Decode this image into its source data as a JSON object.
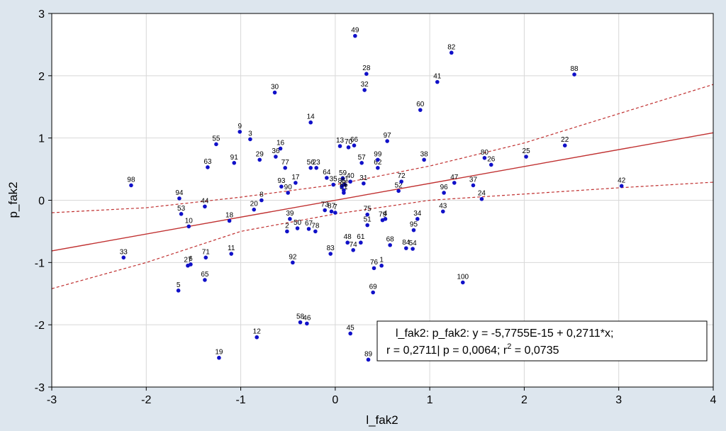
{
  "chart_data": {
    "type": "scatter",
    "xlabel": "l_fak2",
    "ylabel": "p_fak2",
    "xlim": [
      -3,
      4
    ],
    "ylim": [
      -3,
      3
    ],
    "xticks": [
      "-3",
      "-2",
      "-1",
      "0",
      "1",
      "2",
      "3",
      "4"
    ],
    "yticks": [
      "-3",
      "-2",
      "-1",
      "0",
      "1",
      "2",
      "3"
    ],
    "grid": true,
    "colors": {
      "point": "#1010c8",
      "regression": "#c03030",
      "background": "#dde6ee",
      "plot": "#ffffff"
    },
    "regression": {
      "intercept": 0,
      "slope": 0.2711
    },
    "confidence_band": {
      "x": [
        -3,
        -2,
        -1,
        0,
        1,
        2,
        3,
        4
      ],
      "upper": [
        -0.2,
        -0.12,
        0.05,
        0.25,
        0.55,
        0.92,
        1.39,
        1.86
      ],
      "lower": [
        -1.42,
        -1.0,
        -0.5,
        -0.22,
        0.0,
        0.1,
        0.2,
        0.29
      ]
    },
    "annotation": {
      "line1": "l_fak2:  p_fak2:   y = -5,7755E-15 + 0,2711*x;",
      "line2a": "r = 0,2711| p = 0,0064; r",
      "line2sup": "2",
      "line2b": " = 0,0735"
    },
    "points": [
      {
        "id": "1",
        "x": 0.49,
        "y": -1.05
      },
      {
        "id": "2",
        "x": -0.51,
        "y": -0.5
      },
      {
        "id": "3",
        "x": -0.9,
        "y": 0.98
      },
      {
        "id": "4",
        "x": 0.53,
        "y": -0.3
      },
      {
        "id": "5",
        "x": -1.66,
        "y": -1.45
      },
      {
        "id": "6",
        "x": -1.53,
        "y": -1.03
      },
      {
        "id": "7",
        "x": 0.0,
        "y": -0.2
      },
      {
        "id": "8",
        "x": -0.78,
        "y": 0.0
      },
      {
        "id": "9",
        "x": -1.01,
        "y": 1.1
      },
      {
        "id": "10",
        "x": -1.55,
        "y": -0.42
      },
      {
        "id": "11",
        "x": -1.1,
        "y": -0.86
      },
      {
        "id": "12",
        "x": -0.83,
        "y": -2.2
      },
      {
        "id": "13",
        "x": 0.05,
        "y": 0.87
      },
      {
        "id": "14",
        "x": -0.26,
        "y": 1.25
      },
      {
        "id": "16",
        "x": -0.58,
        "y": 0.83
      },
      {
        "id": "17",
        "x": -0.42,
        "y": 0.28
      },
      {
        "id": "18",
        "x": -1.12,
        "y": -0.33
      },
      {
        "id": "19",
        "x": -1.23,
        "y": -2.53
      },
      {
        "id": "20",
        "x": -0.86,
        "y": -0.15
      },
      {
        "id": "21",
        "x": 0.1,
        "y": 0.25
      },
      {
        "id": "22",
        "x": 2.43,
        "y": 0.88
      },
      {
        "id": "23",
        "x": -0.2,
        "y": 0.52
      },
      {
        "id": "24",
        "x": 1.55,
        "y": 0.02
      },
      {
        "id": "25",
        "x": 2.02,
        "y": 0.7
      },
      {
        "id": "26",
        "x": 1.65,
        "y": 0.57
      },
      {
        "id": "27",
        "x": -1.56,
        "y": -1.05
      },
      {
        "id": "28",
        "x": 0.33,
        "y": 2.03
      },
      {
        "id": "29",
        "x": -0.8,
        "y": 0.65
      },
      {
        "id": "30",
        "x": -0.64,
        "y": 1.73
      },
      {
        "id": "31",
        "x": 0.3,
        "y": 0.27
      },
      {
        "id": "32",
        "x": 0.31,
        "y": 1.77
      },
      {
        "id": "33",
        "x": -2.24,
        "y": -0.92
      },
      {
        "id": "34",
        "x": 0.87,
        "y": -0.3
      },
      {
        "id": "35",
        "x": -0.02,
        "y": 0.25
      },
      {
        "id": "36",
        "x": -0.63,
        "y": 0.7
      },
      {
        "id": "37",
        "x": 1.46,
        "y": 0.24
      },
      {
        "id": "38",
        "x": 0.94,
        "y": 0.65
      },
      {
        "id": "39",
        "x": -0.48,
        "y": -0.3
      },
      {
        "id": "40",
        "x": 0.16,
        "y": 0.3
      },
      {
        "id": "41",
        "x": 1.08,
        "y": 1.9
      },
      {
        "id": "42",
        "x": 3.03,
        "y": 0.23
      },
      {
        "id": "43",
        "x": 1.14,
        "y": -0.18
      },
      {
        "id": "44",
        "x": -1.38,
        "y": -0.1
      },
      {
        "id": "45",
        "x": 0.16,
        "y": -2.14
      },
      {
        "id": "46",
        "x": -0.3,
        "y": -1.98
      },
      {
        "id": "47",
        "x": 1.26,
        "y": 0.28
      },
      {
        "id": "48",
        "x": 0.13,
        "y": -0.68
      },
      {
        "id": "49",
        "x": 0.21,
        "y": 2.64
      },
      {
        "id": "50",
        "x": -0.4,
        "y": -0.45
      },
      {
        "id": "51",
        "x": 0.34,
        "y": -0.4
      },
      {
        "id": "52",
        "x": 0.67,
        "y": 0.15
      },
      {
        "id": "53",
        "x": -1.63,
        "y": -0.22
      },
      {
        "id": "54",
        "x": 0.82,
        "y": -0.78
      },
      {
        "id": "55",
        "x": -1.26,
        "y": 0.9
      },
      {
        "id": "56",
        "x": -0.26,
        "y": 0.52
      },
      {
        "id": "57",
        "x": 0.28,
        "y": 0.6
      },
      {
        "id": "58",
        "x": -0.37,
        "y": -1.96
      },
      {
        "id": "59",
        "x": 0.08,
        "y": 0.35
      },
      {
        "id": "60",
        "x": 0.9,
        "y": 1.45
      },
      {
        "id": "61",
        "x": 0.27,
        "y": -0.68
      },
      {
        "id": "62",
        "x": 0.45,
        "y": 0.52
      },
      {
        "id": "63",
        "x": -1.35,
        "y": 0.53
      },
      {
        "id": "64",
        "x": -0.09,
        "y": 0.36
      },
      {
        "id": "65",
        "x": -1.38,
        "y": -1.28
      },
      {
        "id": "66",
        "x": 0.2,
        "y": 0.88
      },
      {
        "id": "67",
        "x": -0.28,
        "y": -0.46
      },
      {
        "id": "68",
        "x": 0.58,
        "y": -0.72
      },
      {
        "id": "69",
        "x": 0.4,
        "y": -1.48
      },
      {
        "id": "70",
        "x": 0.14,
        "y": 0.85
      },
      {
        "id": "71",
        "x": -1.37,
        "y": -0.92
      },
      {
        "id": "72",
        "x": 0.7,
        "y": 0.3
      },
      {
        "id": "73",
        "x": -0.11,
        "y": -0.16
      },
      {
        "id": "74",
        "x": 0.19,
        "y": -0.8
      },
      {
        "id": "75",
        "x": 0.34,
        "y": -0.23
      },
      {
        "id": "76",
        "x": 0.41,
        "y": -1.09
      },
      {
        "id": "77",
        "x": -0.53,
        "y": 0.52
      },
      {
        "id": "78",
        "x": -0.21,
        "y": -0.5
      },
      {
        "id": "79",
        "x": 0.5,
        "y": -0.32
      },
      {
        "id": "80",
        "x": 1.58,
        "y": 0.68
      },
      {
        "id": "81",
        "x": 0.09,
        "y": 0.12
      },
      {
        "id": "82",
        "x": 1.23,
        "y": 2.37
      },
      {
        "id": "83",
        "x": -0.05,
        "y": -0.86
      },
      {
        "id": "84",
        "x": 0.75,
        "y": -0.77
      },
      {
        "id": "85",
        "x": 0.07,
        "y": 0.22
      },
      {
        "id": "86",
        "x": 0.09,
        "y": 0.16
      },
      {
        "id": "87",
        "x": -0.04,
        "y": -0.18
      },
      {
        "id": "88",
        "x": 2.53,
        "y": 2.02
      },
      {
        "id": "89",
        "x": 0.35,
        "y": -2.56
      },
      {
        "id": "90",
        "x": -0.5,
        "y": 0.12
      },
      {
        "id": "91",
        "x": -1.07,
        "y": 0.6
      },
      {
        "id": "92",
        "x": -0.45,
        "y": -1.0
      },
      {
        "id": "93",
        "x": -0.57,
        "y": 0.22
      },
      {
        "id": "94",
        "x": -1.65,
        "y": 0.03
      },
      {
        "id": "95",
        "x": 0.83,
        "y": -0.48
      },
      {
        "id": "96",
        "x": 1.15,
        "y": 0.12
      },
      {
        "id": "97",
        "x": 0.55,
        "y": 0.95
      },
      {
        "id": "98",
        "x": -2.16,
        "y": 0.24
      },
      {
        "id": "99",
        "x": 0.45,
        "y": 0.65
      },
      {
        "id": "100",
        "x": 1.35,
        "y": -1.32
      }
    ]
  }
}
